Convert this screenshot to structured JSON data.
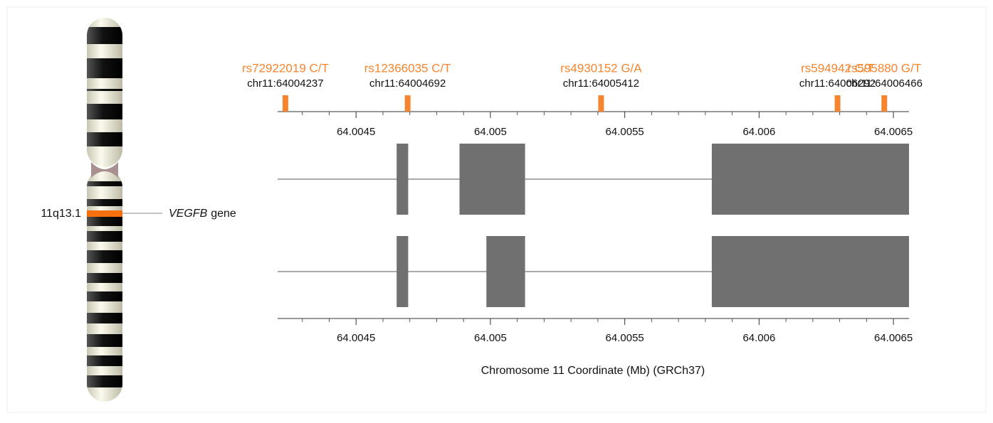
{
  "chart_data": {
    "type": "gene-track",
    "x_label": "Chromosome 11 Coordinate (Mb) (GRCh37)",
    "band_label": "11q13.1",
    "gene_name": "VEGFB",
    "gene_suffix": "gene",
    "xlim": [
      64.004208,
      64.006558
    ],
    "xticks": [
      64.0045,
      64.005,
      64.0055,
      64.006,
      64.0065
    ],
    "minor_xticks": [
      64.0043,
      64.0044,
      64.0046,
      64.0047,
      64.0048,
      64.0049,
      64.0051,
      64.0052,
      64.0053,
      64.0054,
      64.0056,
      64.0057,
      64.0058,
      64.0059,
      64.0061,
      64.0062,
      64.0063,
      64.0064
    ],
    "snp_color": "#f7852f",
    "exon_color": "#707070",
    "snps": {
      "names": [
        "rs72922019 C/T",
        "rs12366035 C/T",
        "rs4930152 G/A",
        "rs594942 C/T",
        "rs595880 G/T"
      ],
      "positions": [
        64.004237,
        64.004692,
        64.005412,
        64.006292,
        64.006466
      ],
      "position_labels": [
        "chr11:64004237",
        "chr11:64004692",
        "chr11:64005412",
        "chr11:64006292",
        "chr11:64006466"
      ]
    },
    "transcripts": [
      {
        "exons": [
          [
            64.004651,
            64.004694
          ],
          [
            64.004885,
            64.005129
          ],
          [
            64.005824,
            64.006558
          ]
        ]
      },
      {
        "exons": [
          [
            64.004651,
            64.004694
          ],
          [
            64.004985,
            64.005129
          ],
          [
            64.005824,
            64.006558
          ]
        ]
      }
    ]
  }
}
